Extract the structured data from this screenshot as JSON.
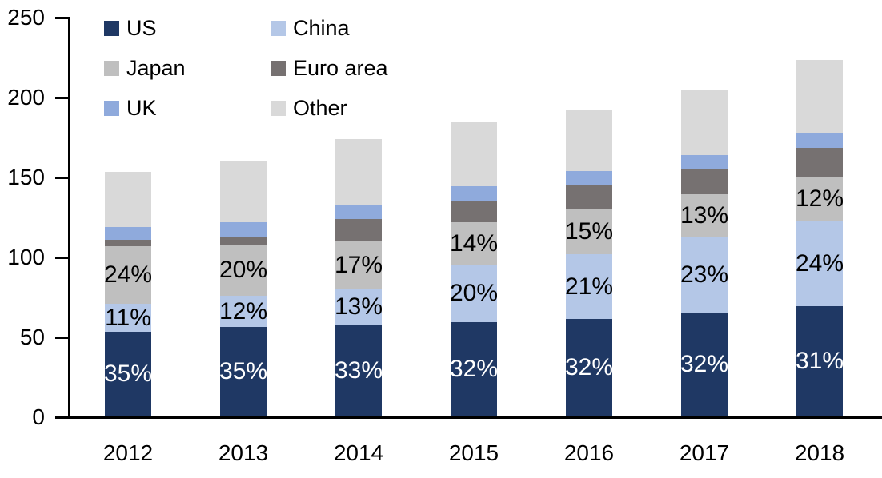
{
  "chart_data": {
    "type": "bar",
    "stacked": true,
    "title": "",
    "xlabel": "",
    "ylabel": "",
    "grid": false,
    "legend_position": "top-left",
    "ylim": [
      0,
      250
    ],
    "yticks": [
      0,
      50,
      100,
      150,
      200,
      250
    ],
    "categories": [
      "2012",
      "2013",
      "2014",
      "2015",
      "2016",
      "2017",
      "2018"
    ],
    "series": [
      {
        "name": "US",
        "color": "#1F3864",
        "values": [
          53,
          56,
          57.5,
          59,
          61,
          65,
          69
        ],
        "pct_labels": [
          "35%",
          "35%",
          "33%",
          "32%",
          "32%",
          "32%",
          "31%"
        ],
        "label_color": "#FFFFFF"
      },
      {
        "name": "China",
        "color": "#B4C7E7",
        "values": [
          17.5,
          19.5,
          22.5,
          36,
          40.5,
          47,
          53.5
        ],
        "pct_labels": [
          "11%",
          "12%",
          "13%",
          "20%",
          "21%",
          "23%",
          "24%"
        ],
        "label_color": "#000000"
      },
      {
        "name": "Japan",
        "color": "#BFBFBF",
        "values": [
          36,
          32,
          29.5,
          26.5,
          28.5,
          27,
          27.5
        ],
        "pct_labels": [
          "24%",
          "20%",
          "17%",
          "14%",
          "15%",
          "13%",
          "12%"
        ],
        "label_color": "#000000"
      },
      {
        "name": "Euro area",
        "color": "#767171",
        "values": [
          4,
          4.5,
          14,
          13,
          15,
          15.5,
          18
        ],
        "pct_labels": null,
        "label_color": null
      },
      {
        "name": "UK",
        "color": "#8FAADC",
        "values": [
          8,
          9.5,
          9,
          9.5,
          8.5,
          9,
          9.5
        ],
        "pct_labels": null,
        "label_color": null
      },
      {
        "name": "Other",
        "color": "#D9D9D9",
        "values": [
          34.5,
          38,
          41,
          40,
          38,
          41,
          45.5
        ],
        "pct_labels": null,
        "label_color": null
      }
    ],
    "totals": [
      153,
      159.5,
      173.5,
      184,
      191.5,
      204.5,
      223
    ],
    "legend_entries": [
      {
        "label": "US",
        "color": "#1F3864"
      },
      {
        "label": "China",
        "color": "#B4C7E7"
      },
      {
        "label": "Japan",
        "color": "#BFBFBF"
      },
      {
        "label": "Euro area",
        "color": "#767171"
      },
      {
        "label": "UK",
        "color": "#8FAADC"
      },
      {
        "label": "Other",
        "color": "#D9D9D9"
      }
    ],
    "axis_color": "#000000"
  }
}
